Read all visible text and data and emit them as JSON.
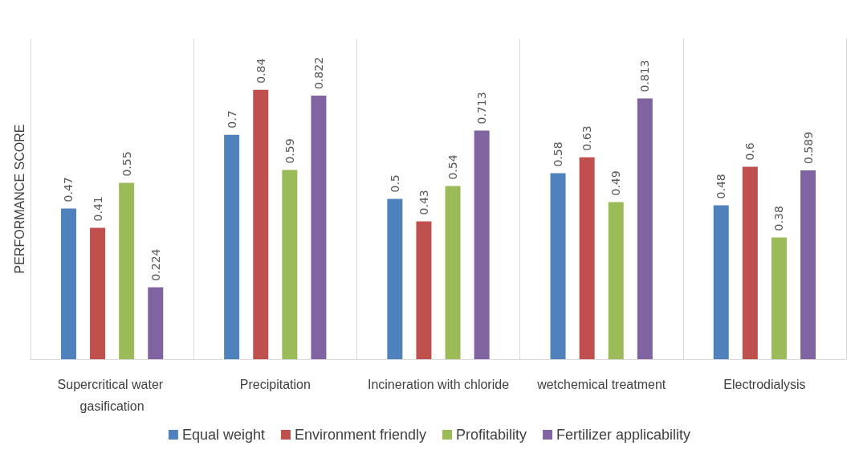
{
  "chart_data": {
    "type": "bar",
    "ylabel": "PERFORMANCE SCORE",
    "categories": [
      "Supercritical water gasification",
      "Precipitation",
      "Incineration with chloride",
      "wetchemical treatment",
      "Electrodialysis"
    ],
    "series": [
      {
        "name": "Equal weight",
        "color": "#4f81bd",
        "values": [
          0.47,
          0.7,
          0.5,
          0.58,
          0.48
        ]
      },
      {
        "name": "Environment friendly",
        "color": "#c0504d",
        "values": [
          0.41,
          0.84,
          0.43,
          0.63,
          0.6
        ]
      },
      {
        "name": "Profitability",
        "color": "#9bbb59",
        "values": [
          0.55,
          0.59,
          0.54,
          0.49,
          0.38
        ]
      },
      {
        "name": "Fertilizer applicability",
        "color": "#8064a2",
        "values": [
          0.224,
          0.822,
          0.713,
          0.813,
          0.589
        ]
      }
    ],
    "data_labels": true,
    "grid": "x",
    "legend": "bottom",
    "tick_labels": "x"
  }
}
